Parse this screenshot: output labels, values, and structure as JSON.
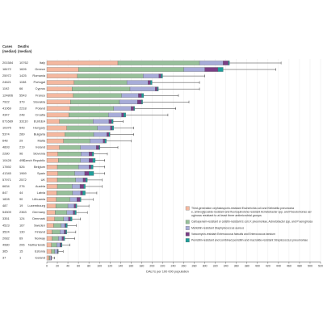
{
  "chart_data": {
    "type": "bar",
    "orientation": "horizontal",
    "stacked": true,
    "xlabel": "DALYs per 100 000 population",
    "xlim": [
      0,
      520
    ],
    "xticks": [
      0,
      20,
      40,
      60,
      80,
      100,
      120,
      140,
      160,
      180,
      200,
      220,
      240,
      260,
      280,
      300,
      320,
      340,
      360,
      380,
      400,
      420,
      440,
      460,
      480,
      500,
      520
    ],
    "columns": {
      "cases_header": [
        "Cases",
        "(median)"
      ],
      "deaths_header": [
        "Deaths",
        "(median)"
      ]
    },
    "categories": [
      "Italy",
      "Greece",
      "Romania",
      "Portugal",
      "Cyprus",
      "France",
      "Slovakia",
      "Poland",
      "Croatia",
      "EU/EEA",
      "Hungary",
      "Bulgaria",
      "Malta",
      "Ireland",
      "Slovenia",
      "Czech Republic",
      "Belgium",
      "Spain",
      "UK",
      "Austria",
      "Latvia",
      "Lithuania",
      "Luxembourg",
      "Germany",
      "Denmark",
      "Sweden",
      "Finland",
      "Norway",
      "Netherlands",
      "Estonia",
      "Iceland"
    ],
    "cases": [
      "201584",
      "18472",
      "25972",
      "24621",
      "1192",
      "124806",
      "7922",
      "41069",
      "4347",
      "671689",
      "10375",
      "5374",
      "648",
      "4893",
      "2280",
      "10428",
      "17892",
      "41345",
      "57971",
      "6634",
      "847",
      "1828",
      "487",
      "54509",
      "3351",
      "4523",
      "3524",
      "2082",
      "4980",
      "365",
      "37"
    ],
    "deaths": [
      "10762",
      "1626",
      "1425",
      "1158",
      "66",
      "5543",
      "379",
      "2218",
      "248",
      "33110",
      "543",
      "289",
      "29",
      "219",
      "96",
      "495",
      "526",
      "1969",
      "2572",
      "276",
      "44",
      "90",
      "19",
      "2363",
      "124",
      "167",
      "130",
      "69",
      "206",
      "15",
      "1"
    ],
    "series": [
      {
        "name": "Third-generation cephalosporin-resistant Escherichia coli and Klebsiella pneumoniae, aminoglycoside-resistant and fluoroquinolone-resistant Acinetobacter spp, and Pseudomonas aeruginosa resistant to at least three antimicrobial groups",
        "values": [
          135,
          60,
          58,
          52,
          48,
          50,
          45,
          44,
          42,
          24,
          38,
          34,
          32,
          24,
          21,
          22,
          20,
          21,
          20,
          20,
          19,
          18,
          17,
          16,
          15,
          13,
          10,
          10,
          9,
          9,
          4
        ]
      },
      {
        "name": "Carbapenem-resistant or colistin-resistant E coli, K pneumoniae, Acinetobacter spp, and P aeruginosa",
        "values": [
          155,
          200,
          125,
          100,
          110,
          92,
          93,
          83,
          75,
          64,
          58,
          55,
          50,
          40,
          44,
          42,
          40,
          32,
          35,
          28,
          30,
          26,
          23,
          22,
          17,
          14,
          15,
          12,
          10,
          6,
          2
        ]
      },
      {
        "name": "Meticillin-resistant Staphylococcus aureus",
        "values": [
          45,
          40,
          30,
          40,
          48,
          32,
          34,
          33,
          25,
          30,
          25,
          25,
          25,
          30,
          15,
          16,
          20,
          19,
          14,
          15,
          15,
          13,
          12,
          12,
          9,
          7,
          8,
          7,
          6,
          5,
          2
        ]
      },
      {
        "name": "Vancomycin-resistant Enterococcus faecalis and Enterococcus faecium",
        "values": [
          10,
          25,
          4,
          5,
          4,
          6,
          8,
          5,
          4,
          5,
          3,
          4,
          3,
          5,
          6,
          7,
          4,
          8,
          5,
          7,
          4,
          6,
          3,
          3,
          4,
          2,
          3,
          3,
          2,
          1,
          1
        ]
      },
      {
        "name": "Penicillin-resistant and combined penicillin and macrolide-resistant Streptococcus pneumoniae",
        "values": [
          2,
          10,
          3,
          3,
          2,
          4,
          2,
          2,
          4,
          3,
          3,
          2,
          3,
          2,
          3,
          5,
          4,
          9,
          3,
          3,
          5,
          2,
          2,
          3,
          3,
          3,
          2,
          2,
          2,
          1,
          0
        ]
      }
    ],
    "error_high": [
      445,
      435,
      300,
      290,
      290,
      250,
      270,
      245,
      230,
      145,
      165,
      165,
      160,
      135,
      115,
      110,
      110,
      110,
      105,
      105,
      95,
      88,
      80,
      77,
      64,
      56,
      55,
      53,
      44,
      31,
      15
    ],
    "colors": [
      "#f4b8a0",
      "#97c09a",
      "#a7acd8",
      "#7b3f86",
      "#1f9e9a"
    ],
    "grid": true,
    "legend": "bottom-right"
  }
}
